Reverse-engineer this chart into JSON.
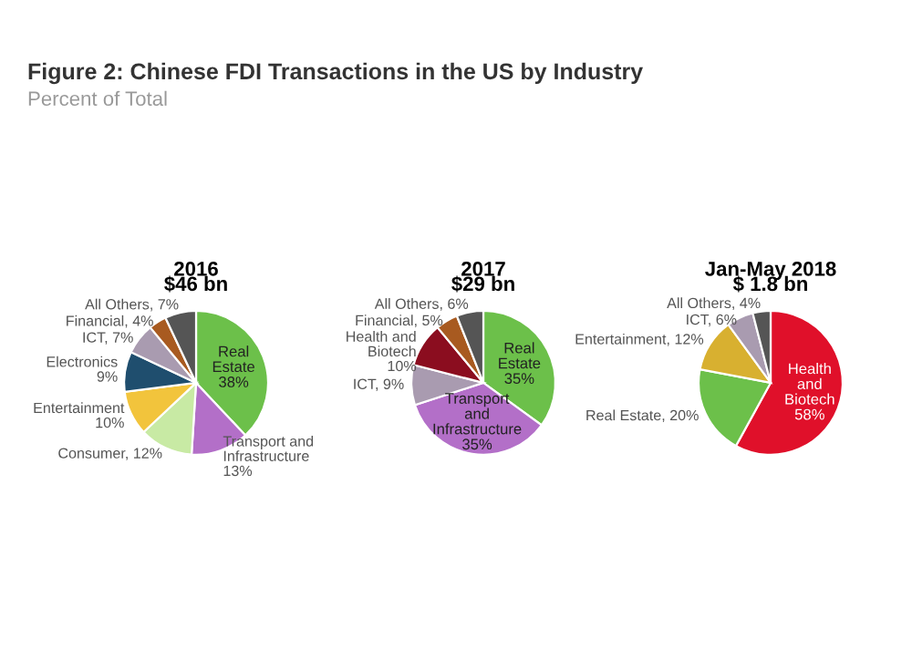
{
  "chart_data": [
    {
      "type": "pie",
      "title": "2016",
      "subtitle": "$46 bn",
      "annotations": [
        "Figure 2: Chinese FDI Transactions in the US by Industry",
        "Percent of Total"
      ],
      "categories": [
        "Real Estate",
        "Transport and\nInfrastructure",
        "Consumer",
        "Entertainment",
        "Electronics",
        "ICT",
        "Financial",
        "All Others"
      ],
      "values": [
        38,
        13,
        12,
        10,
        9,
        7,
        4,
        7
      ],
      "value_labels": [
        "38%",
        "13%",
        "12%",
        "10%",
        "9%",
        "7%",
        "4%",
        "7%"
      ],
      "colors": [
        "#6cc04a",
        "#b36fc8",
        "#c8eaa4",
        "#f2c43c",
        "#1f4e6e",
        "#a99bb0",
        "#a85a20",
        "#555555"
      ]
    },
    {
      "type": "pie",
      "title": "2017",
      "subtitle": "$29 bn",
      "categories": [
        "Real Estate",
        "Transport and\nInfrastructure",
        "ICT",
        "Health and\nBiotech",
        "Financial",
        "All Others"
      ],
      "values": [
        35,
        35,
        9,
        10,
        5,
        6
      ],
      "value_labels": [
        "35%",
        "35%",
        "9%",
        "10%",
        "5%",
        "6%"
      ],
      "colors": [
        "#6cc04a",
        "#b36fc8",
        "#a99bb0",
        "#8b0d1f",
        "#a85a20",
        "#555555"
      ]
    },
    {
      "type": "pie",
      "title": "Jan-May 2018",
      "subtitle": "$ 1.8 bn",
      "categories": [
        "Health and\nBiotech",
        "Real Estate",
        "Entertainment",
        "ICT",
        "All Others"
      ],
      "values": [
        58,
        20,
        12,
        6,
        4
      ],
      "value_labels": [
        "58%",
        "20%",
        "12%",
        "6%",
        "4%"
      ],
      "colors": [
        "#e0102a",
        "#6cc04a",
        "#d8b030",
        "#a99bb0",
        "#555555"
      ]
    }
  ]
}
